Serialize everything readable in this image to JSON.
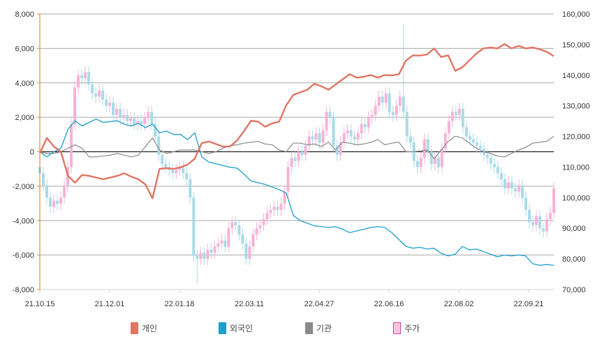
{
  "chart_data": {
    "type": "line+candlestick",
    "x_tick_labels": [
      "21.10.15",
      "21.12.01",
      "22.01.18",
      "22.03.11",
      "22.04.27",
      "22.06.16",
      "22.08.02",
      "22.09.21"
    ],
    "left_axis": {
      "range": [
        -8000,
        8000
      ],
      "step": 2000,
      "tick_labels": [
        "8,000",
        "6,000",
        "4,000",
        "2,000",
        "0",
        "-2,000",
        "-4,000",
        "-6,000",
        "-8,000"
      ]
    },
    "right_axis": {
      "range": [
        70000,
        160000
      ],
      "step": 10000,
      "tick_labels": [
        "160,000",
        "150,000",
        "140,000",
        "130,000",
        "120,000",
        "110,000",
        "100,000",
        "90,000",
        "80,000",
        "70,000"
      ]
    },
    "grid": true,
    "legend_position": "bottom",
    "series": [
      {
        "name": "개인",
        "color": "#e07563",
        "axis": "left",
        "values": [
          -100,
          800,
          300,
          0,
          -1400,
          -1800,
          -1350,
          -1400,
          -1500,
          -1600,
          -1500,
          -1400,
          -1250,
          -1450,
          -1600,
          -1900,
          -2700,
          -1000,
          -950,
          -1000,
          -900,
          -750,
          -400,
          500,
          600,
          450,
          300,
          300,
          650,
          1200,
          1800,
          1750,
          1450,
          1650,
          1750,
          2700,
          3300,
          3450,
          3600,
          3950,
          3800,
          3600,
          3900,
          4200,
          4500,
          4300,
          4350,
          4450,
          4300,
          4450,
          4430,
          4500,
          5300,
          5600,
          5580,
          5650,
          6000,
          5500,
          5600,
          4700,
          4900,
          5300,
          5700,
          6000,
          6050,
          6000,
          6250,
          6000,
          6150,
          6000,
          6050,
          5950,
          5800,
          5550
        ]
      },
      {
        "name": "외국인",
        "color": "#1b9fcc",
        "axis": "left",
        "values": [
          0,
          -300,
          0,
          200,
          1300,
          1800,
          1500,
          1700,
          1900,
          1700,
          1750,
          1800,
          1600,
          1500,
          1650,
          1400,
          1600,
          1100,
          1200,
          1000,
          1000,
          700,
          1100,
          -300,
          -600,
          -700,
          -800,
          -900,
          -950,
          -1300,
          -1700,
          -1800,
          -1900,
          -2050,
          -2200,
          -2400,
          -3700,
          -4000,
          -4150,
          -4300,
          -4350,
          -4400,
          -4350,
          -4500,
          -4700,
          -4600,
          -4500,
          -4400,
          -4350,
          -4400,
          -4700,
          -5100,
          -5500,
          -5600,
          -5550,
          -5650,
          -5600,
          -5900,
          -6050,
          -5950,
          -5500,
          -5700,
          -5650,
          -5800,
          -5950,
          -6100,
          -6000,
          -6050,
          -6000,
          -6050,
          -6500,
          -6600,
          -6550,
          -6600
        ]
      },
      {
        "name": "기관",
        "color": "#8a8a8a",
        "axis": "left",
        "values": [
          0,
          -100,
          -100,
          0,
          200,
          400,
          200,
          -300,
          -300,
          -250,
          -200,
          -100,
          -200,
          -300,
          -200,
          300,
          800,
          100,
          -100,
          0,
          100,
          100,
          100,
          0,
          -100,
          0,
          200,
          350,
          400,
          500,
          550,
          600,
          450,
          400,
          100,
          0,
          500,
          500,
          400,
          450,
          300,
          550,
          100,
          550,
          500,
          400,
          450,
          550,
          700,
          400,
          500,
          550,
          0,
          0,
          50,
          100,
          -400,
          100,
          600,
          900,
          800,
          500,
          200,
          0,
          -100,
          -250,
          -300,
          -100,
          100,
          250,
          500,
          550,
          600,
          900
        ]
      },
      {
        "name": "주가",
        "color": "#f7b3d6",
        "down_color": "#a9dbe8",
        "axis": "right",
        "close": [
          108000,
          104000,
          100000,
          97000,
          99000,
          98000,
          100000,
          104000,
          110000,
          124000,
          136000,
          140000,
          139000,
          141000,
          137000,
          134000,
          133000,
          135000,
          132000,
          130000,
          131000,
          127000,
          129000,
          126000,
          127000,
          125000,
          126000,
          124000,
          125000,
          124000,
          126000,
          128000,
          124000,
          120000,
          114000,
          111000,
          110000,
          109000,
          108000,
          109000,
          110000,
          108000,
          106000,
          100000,
          81000,
          80000,
          82000,
          80000,
          83000,
          82000,
          84000,
          85000,
          86000,
          84000,
          90000,
          92000,
          91000,
          88000,
          85000,
          80000,
          84000,
          88000,
          90000,
          91000,
          93000,
          95000,
          96000,
          97000,
          96000,
          98000,
          102000,
          110000,
          113000,
          112000,
          115000,
          114000,
          117000,
          120000,
          119000,
          121000,
          118000,
          122000,
          128000,
          126000,
          117000,
          114000,
          118000,
          121000,
          122000,
          120000,
          119000,
          121000,
          124000,
          123000,
          126000,
          127000,
          130000,
          133000,
          131000,
          134000,
          128000,
          127000,
          130000,
          133000,
          128000,
          120000,
          118000,
          112000,
          110000,
          113000,
          119000,
          115000,
          111000,
          113000,
          110000,
          116000,
          121000,
          125000,
          128000,
          127000,
          129000,
          123000,
          120000,
          119000,
          118000,
          117000,
          116000,
          114000,
          113000,
          111000,
          110000,
          108000,
          106000,
          103000,
          105000,
          103000,
          102000,
          104000,
          100000,
          96000,
          92000,
          91000,
          94000,
          90000,
          89000,
          93000,
          95000,
          103000
        ],
        "spikes": {
          "high": {
            "104": 156500
          },
          "low": {
            "45": 72000
          }
        }
      }
    ]
  },
  "legend": [
    {
      "label": "개인",
      "color": "#e07563"
    },
    {
      "label": "외국인",
      "color": "#1b9fcc"
    },
    {
      "label": "기관",
      "color": "#8a8a8a"
    },
    {
      "label": "주가",
      "color": "#fbc6e2",
      "border": "#d04a9a"
    }
  ]
}
